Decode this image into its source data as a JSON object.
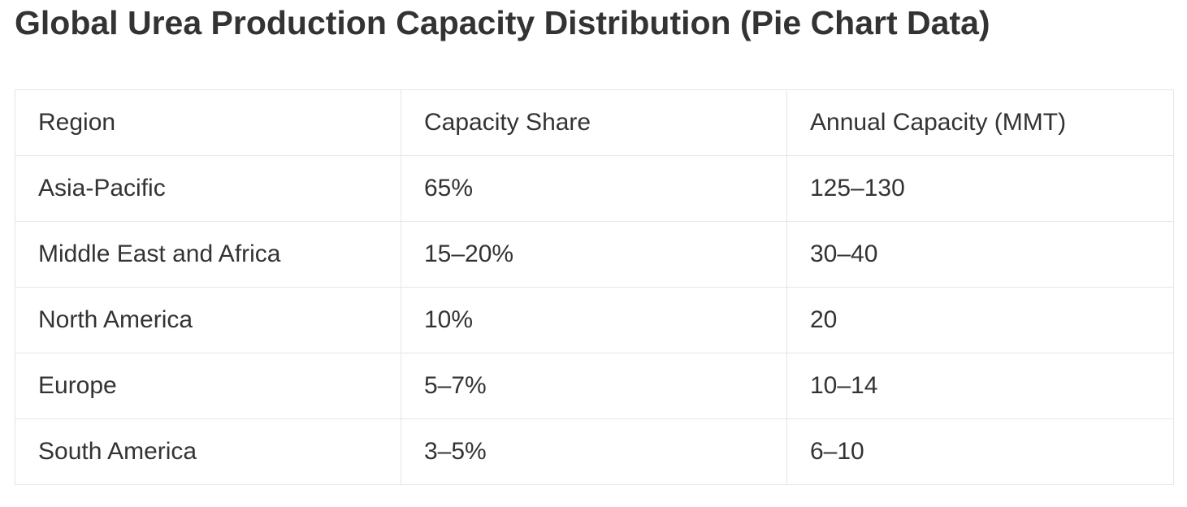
{
  "title": "Global Urea Production Capacity Distribution (Pie Chart Data)",
  "table": {
    "headers": [
      "Region",
      "Capacity Share",
      "Annual Capacity (MMT)"
    ],
    "rows": [
      [
        "Asia-Pacific",
        "65%",
        "125–130"
      ],
      [
        "Middle East and Africa",
        "15–20%",
        "30–40"
      ],
      [
        "North America",
        "10%",
        "20"
      ],
      [
        "Europe",
        "5–7%",
        "10–14"
      ],
      [
        "South America",
        "3–5%",
        "6–10"
      ]
    ]
  },
  "colors": {
    "text": "#333333",
    "border": "#e6e6e6",
    "background": "#ffffff"
  }
}
